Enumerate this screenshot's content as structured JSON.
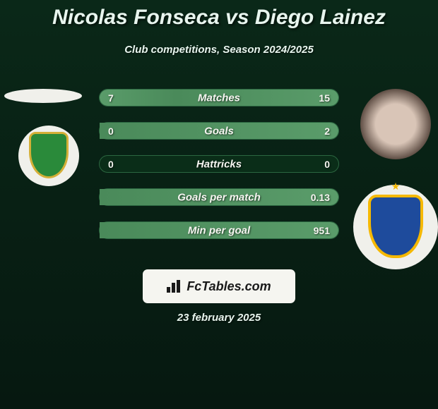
{
  "header": {
    "title": "Nicolas Fonseca vs Diego Lainez",
    "subtitle": "Club competitions, Season 2024/2025"
  },
  "stats": [
    {
      "label": "Matches",
      "left_val": "7",
      "right_val": "15",
      "left_pct": 32,
      "right_pct": 68
    },
    {
      "label": "Goals",
      "left_val": "0",
      "right_val": "2",
      "left_pct": 0,
      "right_pct": 100
    },
    {
      "label": "Hattricks",
      "left_val": "0",
      "right_val": "0",
      "left_pct": 0,
      "right_pct": 0
    },
    {
      "label": "Goals per match",
      "left_val": "",
      "right_val": "0.13",
      "left_pct": 0,
      "right_pct": 100
    },
    {
      "label": "Min per goal",
      "left_val": "",
      "right_val": "951",
      "left_pct": 0,
      "right_pct": 100
    }
  ],
  "branding": {
    "site_name": "FcTables.com",
    "date": "23 february 2025"
  },
  "colors": {
    "bg_top": "#0a2818",
    "bg_bottom": "#061810",
    "bar_fill": "#5a9c6a",
    "bar_empty": "#0a2d18",
    "text": "#e8f5ee",
    "logo_bg": "#f5f5f0",
    "logo_text": "#1a1a1a",
    "leon_green": "#2a8a3a",
    "leon_gold": "#d4af37",
    "tigres_blue": "#1e4b9c",
    "tigres_yellow": "#f5b800"
  }
}
